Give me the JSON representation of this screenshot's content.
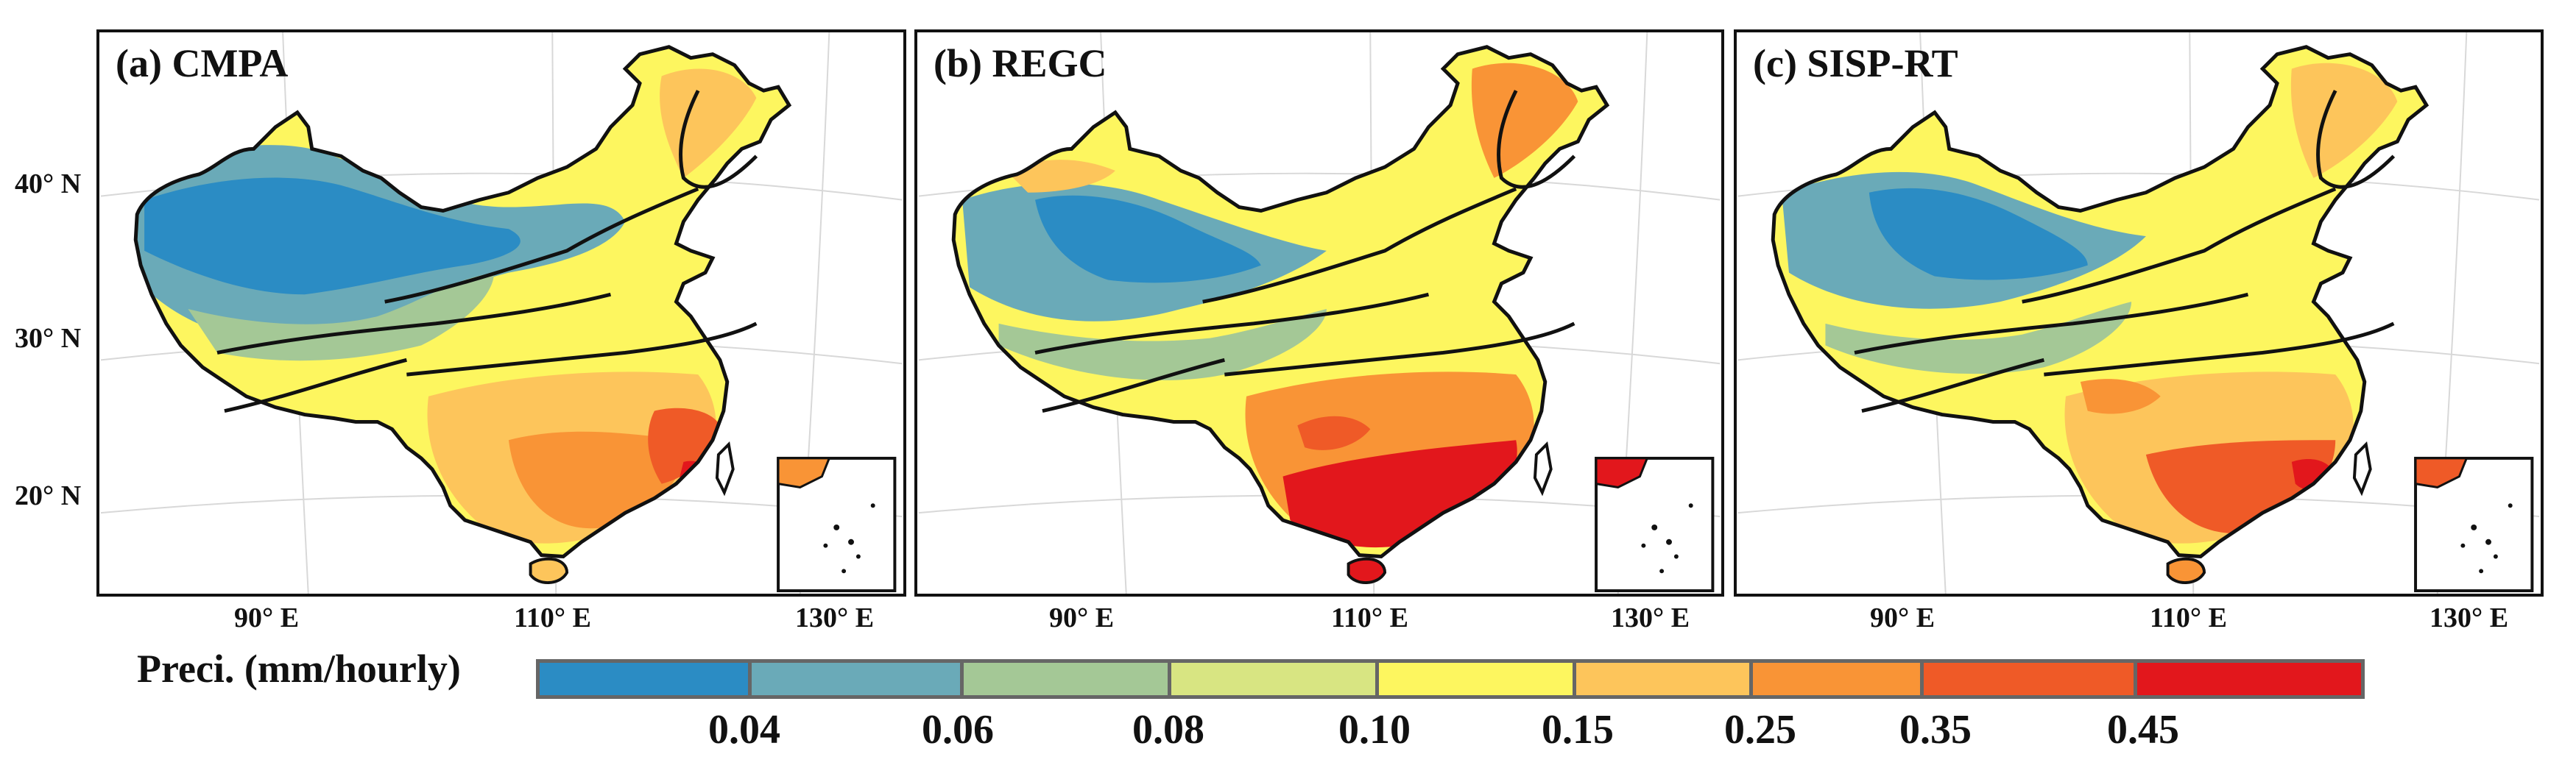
{
  "panels": [
    {
      "title": "(a) CMPA",
      "scheme": "cmpa"
    },
    {
      "title": "(b) REGC",
      "scheme": "regc"
    },
    {
      "title": "(c) SISP-RT",
      "scheme": "sisp"
    }
  ],
  "axes": {
    "lat_labels": [
      "40° N",
      "30° N",
      "20° N"
    ],
    "lon_labels": [
      "90° E",
      "110° E",
      "130° E"
    ]
  },
  "colorbar": {
    "label": "Preci. (mm/hourly)",
    "colors": [
      "#2b8cc4",
      "#6aaab8",
      "#a4c896",
      "#d8e582",
      "#fdf65f",
      "#fdc55b",
      "#f99436",
      "#ef5a27",
      "#e2171c"
    ],
    "ticks": [
      "0.04",
      "0.06",
      "0.08",
      "0.10",
      "0.15",
      "0.25",
      "0.35",
      "0.45"
    ]
  }
}
